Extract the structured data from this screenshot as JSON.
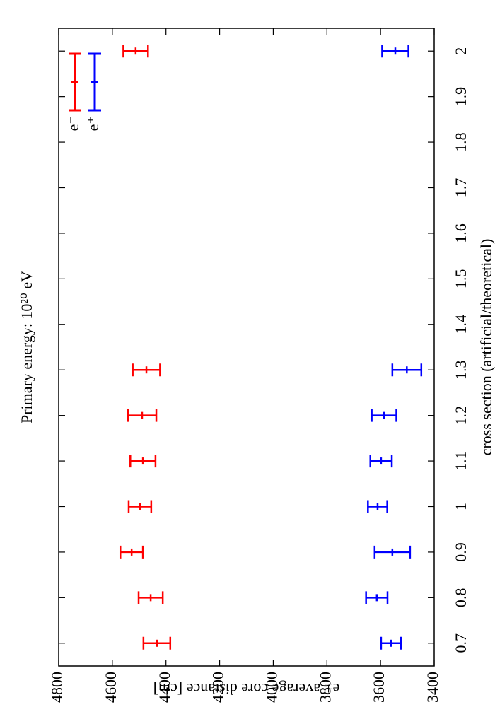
{
  "chart_data": {
    "type": "errorbar",
    "title": "Primary energy: 10²⁰ eV",
    "x_label": "cross section (artificial/theoretical)",
    "y_label": "e± average core distance [cm]",
    "x": [
      0.7,
      0.8,
      0.9,
      1.0,
      1.1,
      1.2,
      1.3,
      2.0
    ],
    "series": [
      {
        "name": "e⁻",
        "color": "#ff0000",
        "values": [
          4434,
          4457,
          4528,
          4497,
          4486,
          4489,
          4473,
          4513
        ],
        "errors": [
          50,
          45,
          42,
          42,
          47,
          53,
          51,
          46
        ]
      },
      {
        "name": "e⁺",
        "color": "#0000ff",
        "values": [
          3561,
          3614,
          3556,
          3611,
          3598,
          3587,
          3502,
          3545
        ],
        "errors": [
          37,
          40,
          66,
          36,
          40,
          46,
          54,
          49
        ]
      }
    ],
    "xlim": [
      0.65,
      2.05
    ],
    "xticks": [
      0.7,
      0.8,
      0.9,
      1,
      1.1,
      1.2,
      1.3,
      1.4,
      1.5,
      1.6,
      1.7,
      1.8,
      1.9,
      2
    ],
    "ylim": [
      3400,
      4800
    ],
    "yticks": [
      3400,
      3600,
      3800,
      4000,
      4200,
      4400,
      4600,
      4800
    ],
    "legend": "top-right",
    "rotation": -90
  }
}
